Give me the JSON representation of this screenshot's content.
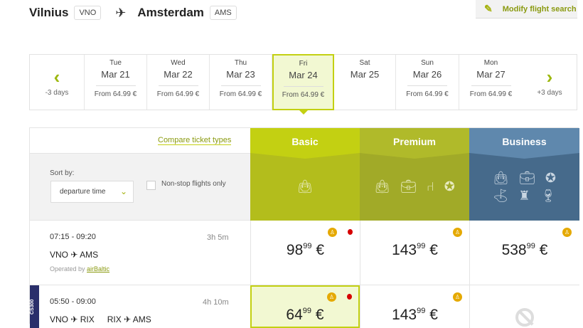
{
  "route": {
    "origin_city": "Vilnius",
    "origin_code": "VNO",
    "dest_city": "Amsterdam",
    "dest_code": "AMS"
  },
  "modify_label": "Modify flight search",
  "dates": {
    "prev_label": "-3 days",
    "next_label": "+3 days",
    "days": [
      {
        "dow": "Tue",
        "date": "Mar 21",
        "price": "From 64.99 €"
      },
      {
        "dow": "Wed",
        "date": "Mar 22",
        "price": "From 64.99 €"
      },
      {
        "dow": "Thu",
        "date": "Mar 23",
        "price": "From 64.99 €"
      },
      {
        "dow": "Fri",
        "date": "Mar 24",
        "price": "From 64.99 €",
        "selected": true
      },
      {
        "dow": "Sat",
        "date": "Mar 25",
        "price": ""
      },
      {
        "dow": "Sun",
        "date": "Mar 26",
        "price": "From 64.99 €"
      },
      {
        "dow": "Mon",
        "date": "Mar 27",
        "price": "From 64.99 €"
      }
    ]
  },
  "compare_label": "Compare ticket types",
  "filters": {
    "sort_label": "Sort by:",
    "sort_value": "departure time",
    "nonstop_label": "Non-stop flights only",
    "nonstop_checked": false
  },
  "fares": [
    {
      "name": "Basic",
      "color": "#c3d012"
    },
    {
      "name": "Premium",
      "color": "#b0ba2a"
    },
    {
      "name": "Business",
      "color": "#5f88ad"
    }
  ],
  "flights": [
    {
      "time": "07:15 - 09:20",
      "duration": "3h 5m",
      "legs": [
        "VNO ✈ AMS"
      ],
      "operated_prefix": "Operated by ",
      "operator": "airBaltic",
      "prices": [
        {
          "int": "98",
          "dec": "99",
          "cur": "€"
        },
        {
          "int": "143",
          "dec": "99",
          "cur": "€"
        },
        {
          "int": "538",
          "dec": "99",
          "cur": "€"
        }
      ]
    },
    {
      "time": "05:50 - 09:00",
      "duration": "4h 10m",
      "legs": [
        "VNO ✈ RIX",
        "RIX ✈ AMS"
      ],
      "aircraft_tag": "CS300",
      "prices": [
        {
          "int": "64",
          "dec": "99",
          "cur": "€"
        },
        {
          "int": "143",
          "dec": "99",
          "cur": "€"
        },
        null
      ]
    }
  ]
}
